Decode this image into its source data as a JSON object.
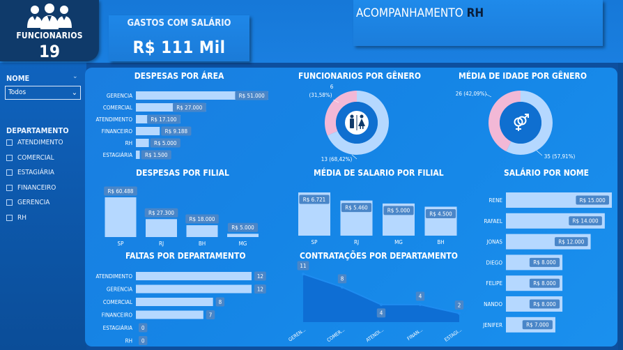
{
  "header": {
    "funcionarios_label": "FUNCIONARIOS",
    "funcionarios_value": "19",
    "gastos_label": "GASTOS COM SALÁRIO",
    "gastos_value": "R$ 111 Mil",
    "title_main": "ACOMPANHAMENTO ",
    "title_bold": "RH"
  },
  "filters": {
    "nome_label": "NOME",
    "nome_selected": "Todos",
    "departamento_label": "DEPARTAMENTO",
    "departamentos": [
      "ATENDIMENTO",
      "COMERCIAL",
      "ESTAGIÁRIA",
      "FINANCEIRO",
      "GERENCIA",
      "RH"
    ]
  },
  "titles": {
    "despesas_area": "DESPESAS POR ÁREA",
    "func_genero": "FUNCIONARIOS POR GÊNERO",
    "idade_genero": "MÉDIA DE IDADE POR GÊNERO",
    "despesas_filial": "DESPESAS POR FILIAL",
    "salario_filial": "MÉDIA DE SALARIO POR FILIAL",
    "salario_nome": "SALÁRIO POR NOME",
    "faltas_dept": "FALTAS POR DEPARTAMENTO",
    "contratacoes_dept": "CONTRATAÇÕES POR DEPARTAMENTO"
  },
  "chart_data": [
    {
      "id": "despesas_area",
      "type": "bar",
      "orientation": "horizontal",
      "categories": [
        "GERENCIA",
        "COMERCIAL",
        "ATENDIMENTO",
        "FINANCEIRO",
        "RH",
        "ESTAGIÁRIA"
      ],
      "values": [
        51000,
        27000,
        17100,
        9188,
        5000,
        1500
      ],
      "labels": [
        "R$ 51.000",
        "R$ 27.000",
        "R$ 17.100",
        "R$ 9.188",
        "R$ 5.000",
        "R$ 1.500"
      ]
    },
    {
      "id": "func_genero",
      "type": "pie",
      "donut": true,
      "slices": [
        {
          "value": 6,
          "label": "6",
          "pct": "(31,58%)",
          "color": "#f2b8d6"
        },
        {
          "value": 13,
          "label": "13 (68,42%)",
          "color": "#b5d8ff"
        }
      ]
    },
    {
      "id": "idade_genero",
      "type": "pie",
      "donut": true,
      "slices": [
        {
          "value": 26,
          "label": "26 (42,09%)",
          "color": "#f2b8d6"
        },
        {
          "value": 35,
          "label": "35 (57,91%)",
          "color": "#b5d8ff"
        }
      ]
    },
    {
      "id": "despesas_filial",
      "type": "bar",
      "orientation": "vertical",
      "categories": [
        "SP",
        "RJ",
        "BH",
        "MG"
      ],
      "values": [
        60488,
        27300,
        18000,
        5000
      ],
      "labels": [
        "R$ 60.488",
        "R$ 27.300",
        "R$ 18.000",
        "R$ 5.000"
      ]
    },
    {
      "id": "salario_filial",
      "type": "bar",
      "orientation": "vertical",
      "categories": [
        "SP",
        "RJ",
        "MG",
        "BH"
      ],
      "values": [
        6721,
        5460,
        5000,
        4500
      ],
      "labels": [
        "R$ 6.721",
        "R$ 5.460",
        "R$ 5.000",
        "R$ 4.500"
      ]
    },
    {
      "id": "salario_nome",
      "type": "bar",
      "orientation": "horizontal",
      "categories": [
        "RENE",
        "RAFAEL",
        "JONAS",
        "DIEGO",
        "FELIPE",
        "NANDO",
        "JENIFER"
      ],
      "values": [
        15000,
        14000,
        12000,
        8000,
        8000,
        8000,
        7000
      ],
      "labels": [
        "R$ 15.000",
        "R$ 14.000",
        "R$ 12.000",
        "R$ 8.000",
        "R$ 8.000",
        "R$ 8.000",
        "R$ 7.000"
      ]
    },
    {
      "id": "faltas_dept",
      "type": "bar",
      "orientation": "horizontal",
      "categories": [
        "ATENDIMENTO",
        "GERENCIA",
        "COMERCIAL",
        "FINANCEIRO",
        "ESTAGIÁRIA",
        "RH"
      ],
      "values": [
        12,
        12,
        8,
        7,
        0,
        0
      ]
    },
    {
      "id": "contratacoes_dept",
      "type": "area",
      "categories": [
        "GERENCIA",
        "COMERCIAL",
        "ATENDIMENTO",
        "FINANCEIRO",
        "ESTAGIÁRIA"
      ],
      "tick_labels": [
        "GEREN...",
        "COMER...",
        "ATENDI...",
        "FINAN...",
        "ESTAGI..."
      ],
      "values": [
        11,
        8,
        4,
        4,
        2
      ]
    }
  ],
  "colors": {
    "bar": "#b5d8ff",
    "label_bg": "#4a86c8",
    "area": "#0e6ed4",
    "line": "#1e8cf0",
    "pink": "#f2b8d6",
    "blue_light": "#b5d8ff",
    "donut_center": "#0f6fd0"
  },
  "icons": {
    "funcionarios": "people-group-icon",
    "genero": "restroom-icon",
    "idade": "gender-symbols-icon",
    "dropdown": "chevron-down-icon"
  }
}
